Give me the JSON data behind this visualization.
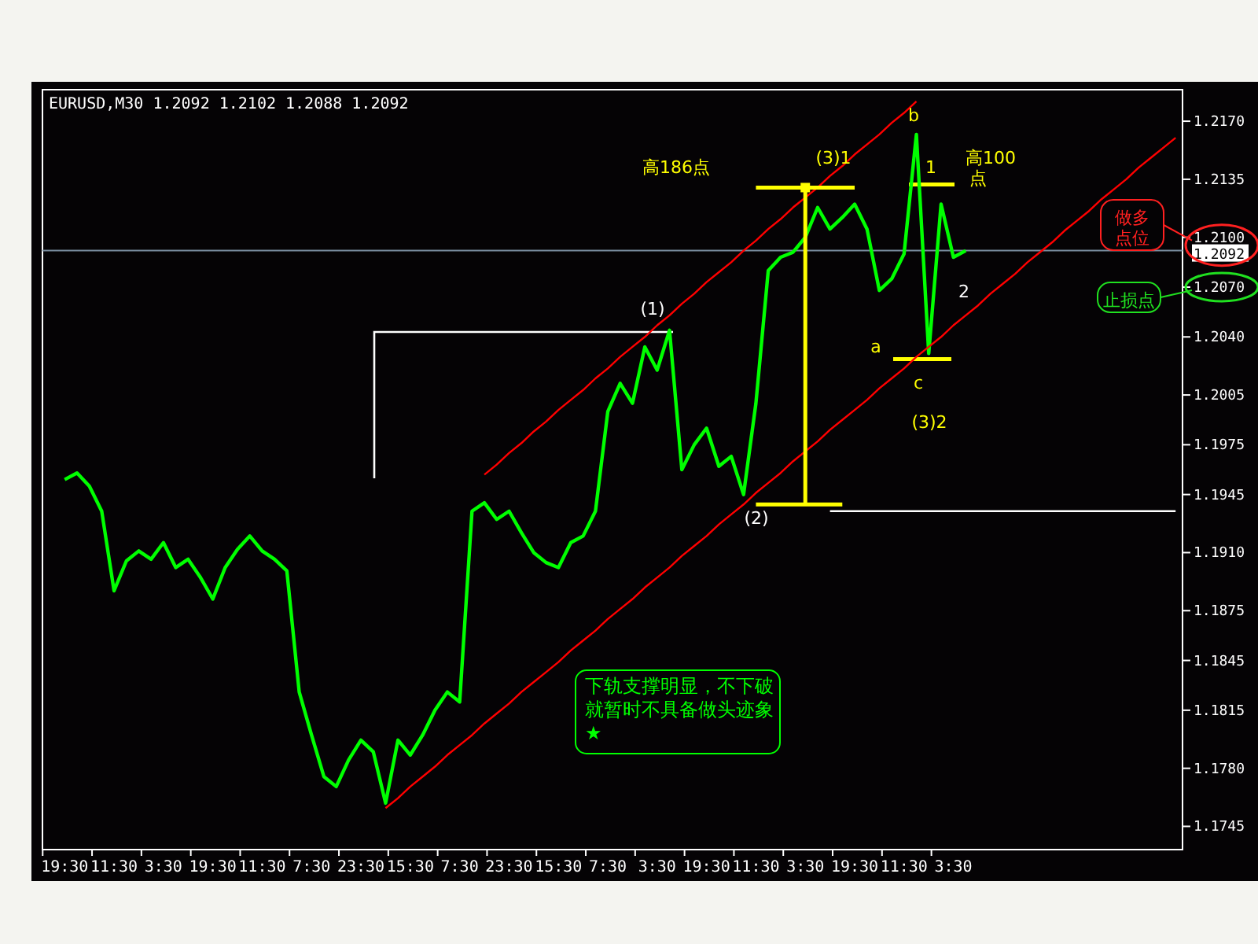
{
  "chart_data": {
    "type": "line",
    "title": "EURUSD,M30  1.2092 1.2102 1.2088 1.2092",
    "categories": [
      "19:30",
      null,
      null,
      null,
      "11:30",
      null,
      null,
      null,
      "3:30",
      null,
      null,
      null,
      "19:30",
      null,
      null,
      null,
      "11:30",
      null,
      null,
      null,
      "7:30",
      null,
      null,
      null,
      "23:30",
      null,
      null,
      null,
      "15:30",
      null,
      null,
      null,
      "7:30",
      null,
      null,
      null,
      "23:30",
      null,
      null,
      null,
      "15:30",
      null,
      null,
      null,
      "7:30",
      null,
      null,
      null,
      "3:30",
      null,
      null,
      null,
      "19:30",
      null,
      null,
      null,
      "11:30",
      null,
      null,
      null,
      "3:30",
      null,
      null,
      null,
      "19:30",
      null,
      null,
      null,
      "11:30",
      null,
      null,
      null,
      "3:30",
      null,
      null,
      null,
      null,
      null,
      null,
      null,
      null,
      null,
      null,
      null,
      null,
      null,
      null,
      null,
      null,
      null,
      null
    ],
    "ylim": [
      1.1731,
      1.2189
    ],
    "yticks": [
      {
        "value": 1.217,
        "label": "1.2170"
      },
      {
        "value": 1.2135,
        "label": "1.2135"
      },
      {
        "value": 1.21,
        "label": "1.2100"
      },
      {
        "value": 1.207,
        "label": "1.2070"
      },
      {
        "value": 1.204,
        "label": "1.2040"
      },
      {
        "value": 1.2005,
        "label": "1.2005"
      },
      {
        "value": 1.1975,
        "label": "1.1975"
      },
      {
        "value": 1.1945,
        "label": "1.1945"
      },
      {
        "value": 1.191,
        "label": "1.1910"
      },
      {
        "value": 1.1875,
        "label": "1.1875"
      },
      {
        "value": 1.1845,
        "label": "1.1845"
      },
      {
        "value": 1.1815,
        "label": "1.1815"
      },
      {
        "value": 1.178,
        "label": "1.1780"
      },
      {
        "value": 1.1745,
        "label": "1.1745"
      }
    ],
    "series": [
      {
        "color": "#00ff00",
        "values": [
          1.1954,
          1.1958,
          1.195,
          1.1935,
          1.1887,
          1.1905,
          1.1911,
          1.1906,
          1.1916,
          1.1901,
          1.1906,
          1.1895,
          1.1882,
          1.1901,
          1.1912,
          1.192,
          1.1911,
          1.1906,
          1.1899,
          1.1826,
          1.18,
          1.1775,
          1.1769,
          1.1785,
          1.1797,
          1.179,
          1.1759,
          1.1797,
          1.1788,
          1.18,
          1.1815,
          1.1826,
          1.182,
          1.1935,
          1.194,
          1.193,
          1.1935,
          1.1922,
          1.191,
          1.1904,
          1.1901,
          1.1916,
          1.192,
          1.1935,
          1.1995,
          1.2012,
          1.2,
          1.2034,
          1.202,
          1.2044,
          1.196,
          1.1975,
          1.1985,
          1.1962,
          1.1968,
          1.1945,
          1.2,
          1.208,
          1.2088,
          1.2091,
          1.21,
          1.2118,
          1.2105,
          1.2112,
          1.212,
          1.2105,
          1.2068,
          1.2075,
          1.209,
          1.2162,
          1.203,
          1.212,
          1.2088,
          1.2092,
          null,
          null,
          null,
          null,
          null,
          null,
          null,
          null,
          null,
          null,
          null,
          null,
          null,
          null,
          null,
          null,
          null
        ]
      },
      {
        "type": "line",
        "color": "#ff0000",
        "values": [
          null,
          null,
          null,
          null,
          null,
          null,
          null,
          null,
          null,
          null,
          null,
          null,
          null,
          null,
          null,
          null,
          null,
          null,
          null,
          null,
          null,
          null,
          null,
          null,
          null,
          null,
          null,
          null,
          null,
          null,
          null,
          null,
          null,
          null,
          1.1957,
          1.1963,
          1.197,
          1.1976,
          1.1983,
          1.1989,
          1.1996,
          1.2002,
          1.2008,
          1.2015,
          1.2021,
          1.2028,
          1.2034,
          1.204,
          1.2047,
          1.2053,
          1.206,
          1.2066,
          1.2073,
          1.2079,
          1.2085,
          1.2092,
          1.2098,
          1.2105,
          1.2111,
          1.2118,
          1.2124,
          1.213,
          1.2137,
          1.2143,
          1.215,
          1.2156,
          1.2162,
          1.2169,
          1.2175,
          1.2182,
          null,
          null,
          null,
          null,
          null,
          null,
          null,
          null,
          null,
          null,
          null,
          null,
          null,
          null,
          null,
          null,
          null,
          null,
          null,
          null,
          null
        ]
      },
      {
        "type": "line",
        "color": "#ff0000",
        "values": [
          null,
          null,
          null,
          null,
          null,
          null,
          null,
          null,
          null,
          null,
          null,
          null,
          null,
          null,
          null,
          null,
          null,
          null,
          null,
          null,
          null,
          null,
          null,
          null,
          null,
          null,
          1.1756,
          1.1762,
          1.1769,
          1.1775,
          1.1781,
          1.1788,
          1.1794,
          1.18,
          1.1807,
          1.1813,
          1.1819,
          1.1826,
          1.1832,
          1.1838,
          1.1844,
          1.1851,
          1.1857,
          1.1863,
          1.187,
          1.1876,
          1.1882,
          1.1889,
          1.1895,
          1.1901,
          1.1908,
          1.1914,
          1.192,
          1.1927,
          1.1933,
          1.1939,
          1.1946,
          1.1952,
          1.1958,
          1.1965,
          1.1971,
          1.1977,
          1.1984,
          1.199,
          1.1996,
          1.2002,
          1.2009,
          1.2015,
          1.2021,
          1.2028,
          1.2034,
          1.204,
          1.2047,
          1.2053,
          1.2059,
          1.2066,
          1.2072,
          1.2078,
          1.2085,
          1.2091,
          1.2097,
          1.2104,
          1.211,
          1.2116,
          1.2123,
          1.2129,
          1.2135,
          1.2142,
          1.2148,
          1.2154,
          1.216
        ]
      },
      {
        "type": "line",
        "color": "#ffffff",
        "values": [
          null,
          null,
          null,
          null,
          null,
          null,
          null,
          null,
          null,
          null,
          null,
          null,
          null,
          null,
          null,
          null,
          null,
          null,
          null,
          null,
          null,
          null,
          null,
          null,
          null,
          null,
          null,
          null,
          null,
          null,
          null,
          null,
          null,
          null,
          null,
          null,
          null,
          null,
          null,
          null,
          null,
          null,
          null,
          null,
          null,
          null,
          null,
          null,
          null,
          null,
          null,
          null,
          null,
          null,
          null,
          null,
          null,
          null,
          null,
          null,
          null,
          null,
          1.1935,
          1.1935,
          1.1935,
          1.1935,
          1.1935,
          1.1935,
          1.1935,
          1.1935,
          1.1935,
          1.1935,
          1.1935,
          1.1935,
          1.1935,
          1.1935,
          1.1935,
          1.1935,
          1.1935,
          1.1935,
          1.1935,
          1.1935,
          1.1935,
          1.1935,
          1.1935,
          1.1935,
          1.1935,
          1.1935,
          1.1935,
          1.1935,
          1.1935
        ]
      },
      {
        "type": "line",
        "color": "#ffff00",
        "values": [
          null,
          null,
          null,
          null,
          null,
          null,
          null,
          null,
          null,
          null,
          null,
          null,
          null,
          null,
          null,
          null,
          null,
          null,
          null,
          null,
          null,
          null,
          null,
          null,
          null,
          null,
          null,
          null,
          null,
          null,
          null,
          null,
          null,
          null,
          null,
          null,
          null,
          null,
          null,
          null,
          null,
          null,
          null,
          null,
          null,
          null,
          null,
          null,
          null,
          null,
          null,
          null,
          null,
          null,
          null,
          null,
          1.213,
          1.213,
          1.213,
          1.213,
          1.213,
          1.213,
          1.213,
          1.213,
          1.213,
          null,
          null,
          null,
          null,
          null,
          null,
          null,
          null,
          null,
          null,
          null,
          null,
          null,
          null,
          null,
          null,
          null,
          null,
          null,
          null,
          null,
          null,
          null,
          null,
          null,
          null
        ]
      },
      {
        "type": "line",
        "color": "#ffff00",
        "values": [
          null,
          null,
          null,
          null,
          null,
          null,
          null,
          null,
          null,
          null,
          null,
          null,
          null,
          null,
          null,
          null,
          null,
          null,
          null,
          null,
          null,
          null,
          null,
          null,
          null,
          null,
          null,
          null,
          null,
          null,
          null,
          null,
          null,
          null,
          null,
          null,
          null,
          null,
          null,
          null,
          null,
          null,
          null,
          null,
          null,
          null,
          null,
          null,
          null,
          null,
          null,
          null,
          null,
          null,
          null,
          null,
          1.1939,
          1.1939,
          1.1939,
          1.1939,
          1.1939,
          1.1939,
          1.1939,
          1.1939,
          null,
          null,
          null,
          null,
          null,
          null,
          null,
          null,
          null,
          null,
          null,
          null,
          null,
          null,
          null,
          null,
          null,
          null,
          null,
          null,
          null,
          null,
          null,
          null,
          null,
          null,
          null
        ]
      },
      {
        "type": "scatter",
        "color": "#ffff00",
        "marker": "square",
        "values": [
          null,
          null,
          null,
          null,
          null,
          null,
          null,
          null,
          null,
          null,
          null,
          null,
          null,
          null,
          null,
          null,
          null,
          null,
          null,
          null,
          null,
          null,
          null,
          null,
          null,
          null,
          null,
          null,
          null,
          null,
          null,
          null,
          null,
          null,
          null,
          null,
          null,
          null,
          null,
          null,
          null,
          null,
          null,
          null,
          null,
          null,
          null,
          null,
          null,
          null,
          null,
          null,
          null,
          null,
          null,
          null,
          null,
          null,
          null,
          null,
          1.213,
          null,
          null,
          null,
          null,
          null,
          null,
          null,
          null,
          null,
          null,
          null,
          null,
          null,
          null,
          null,
          null,
          null,
          null,
          null,
          null,
          null,
          null,
          null,
          null,
          null,
          null,
          null,
          null,
          null,
          null
        ],
        "errors": [
          null,
          null,
          null,
          null,
          null,
          null,
          null,
          null,
          null,
          null,
          null,
          null,
          null,
          null,
          null,
          null,
          null,
          null,
          null,
          null,
          null,
          null,
          null,
          null,
          null,
          null,
          null,
          null,
          null,
          null,
          null,
          null,
          null,
          null,
          null,
          null,
          null,
          null,
          null,
          null,
          null,
          null,
          null,
          null,
          null,
          null,
          null,
          null,
          null,
          null,
          null,
          null,
          null,
          null,
          null,
          null,
          null,
          null,
          null,
          null,
          [
            1.1939,
            1.213
          ],
          null,
          null,
          null,
          null,
          null,
          null,
          null,
          null,
          null,
          null,
          null,
          null,
          null,
          null,
          null,
          null,
          null,
          null,
          null,
          null,
          null,
          null,
          null,
          null,
          null,
          null,
          null,
          null,
          null,
          null
        ]
      }
    ],
    "ref_lines": [
      {
        "axis": "y",
        "value": 1.2092,
        "label": "1.2092",
        "color": "#7a8ea0"
      }
    ],
    "annotations": [
      "高186点",
      "(3)1",
      "高100点",
      "b",
      "1",
      "2",
      "a",
      "c",
      "(3)2",
      "(1)",
      "(2)",
      "做多点位",
      "止损点",
      "下轨支撑明显，不下破就暂时不具备做头迹象★"
    ]
  }
}
